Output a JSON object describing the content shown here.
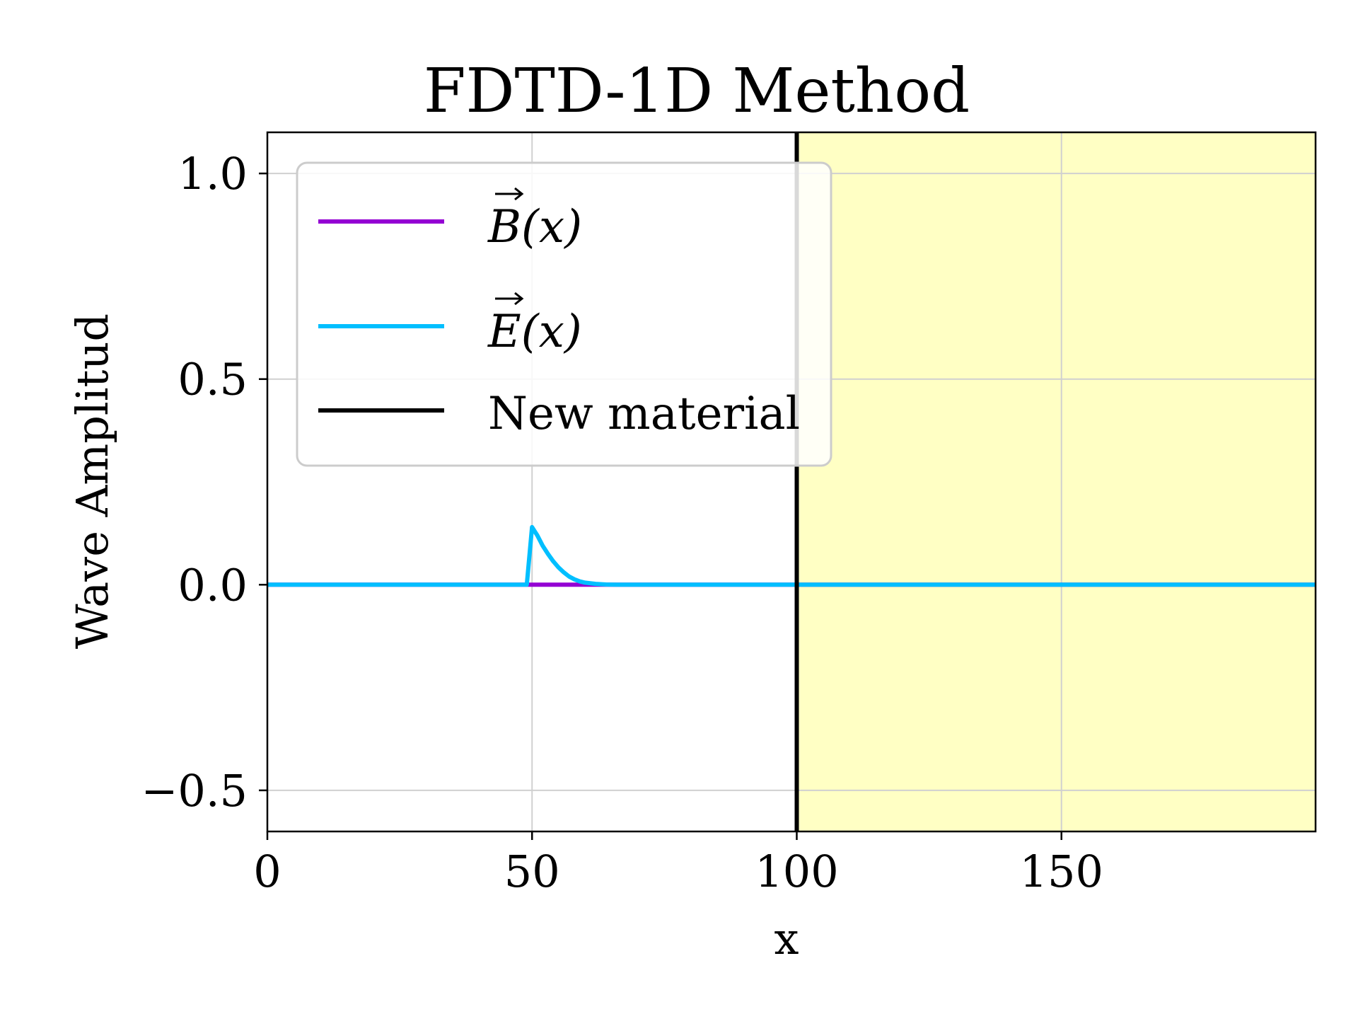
{
  "chart_data": {
    "type": "line",
    "title": "FDTD-1D Method",
    "xlabel": "x",
    "ylabel": "Wave Amplitud",
    "xlim": [
      0,
      198
    ],
    "ylim": [
      -0.6,
      1.1
    ],
    "xticks": [
      0,
      50,
      100,
      150
    ],
    "yticks": [
      -0.5,
      0.0,
      0.5,
      1.0
    ],
    "xtick_labels": [
      "0",
      "50",
      "100",
      "150"
    ],
    "ytick_labels": [
      "−0.5",
      "0.0",
      "0.5",
      "1.0"
    ],
    "grid": true,
    "legend_position": "upper-left",
    "region": {
      "label": "New material",
      "x_start": 100,
      "x_end": 198,
      "fill": "#ffffc4"
    },
    "series": [
      {
        "name": "B(x)",
        "color": "#9400d3",
        "x": [
          0,
          49,
          50,
          52,
          54,
          56,
          58,
          60,
          62,
          64,
          66,
          198
        ],
        "y": [
          0,
          0,
          0,
          0,
          0,
          0,
          0,
          0,
          0,
          0,
          0,
          0
        ]
      },
      {
        "name": "E(x)",
        "color": "#00bfff",
        "x": [
          0,
          48,
          49,
          50,
          51,
          52,
          53,
          54,
          55,
          56,
          57,
          58,
          59,
          60,
          62,
          64,
          66,
          198
        ],
        "y": [
          0,
          0,
          0,
          0.14,
          0.12,
          0.095,
          0.075,
          0.057,
          0.042,
          0.03,
          0.02,
          0.013,
          0.008,
          0.005,
          0.002,
          0.0005,
          0,
          0
        ]
      },
      {
        "name": "New material",
        "color": "#000000",
        "x": [
          100,
          100
        ],
        "y": [
          -0.6,
          1.1
        ]
      }
    ]
  },
  "legend": {
    "b_label": "B(x)",
    "e_label": "E(x)",
    "material_label": "New material"
  }
}
